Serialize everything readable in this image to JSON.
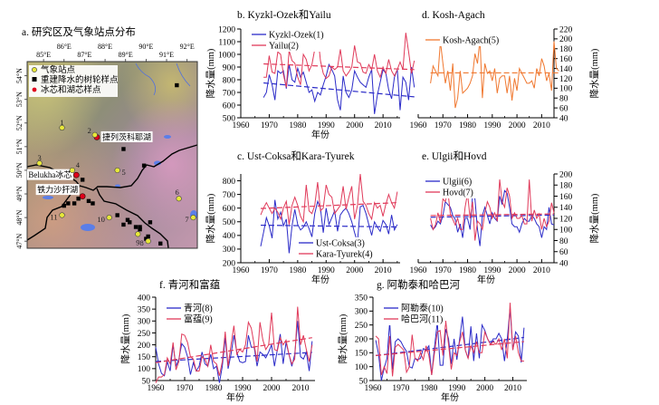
{
  "map": {
    "title": "a. 研究区及气象站点分布",
    "lon_ticks": [
      "85°E",
      "86°E",
      "87°E",
      "88°E",
      "89°E",
      "90°E",
      "91°E",
      "92°E"
    ],
    "lat_ticks": [
      "54°N",
      "53°N",
      "52°N",
      "51°N",
      "50°N",
      "49°N",
      "48°N",
      "47°N"
    ],
    "legend": [
      {
        "label": "气象站点",
        "symbol": "yellow-circle",
        "color": "#e8e83a"
      },
      {
        "label": "重建降水的树轮样点",
        "symbol": "black-square",
        "color": "#000000"
      },
      {
        "label": "冰芯和湖芯样点",
        "symbol": "red-circle",
        "color": "#e0001b"
      }
    ],
    "stations": [
      {
        "id": "1",
        "lon": 85.9,
        "lat": 51.8
      },
      {
        "id": "2",
        "lon": 87.5,
        "lat": 51.5
      },
      {
        "id": "3",
        "lon": 84.8,
        "lat": 50.3
      },
      {
        "id": "4",
        "lon": 86.4,
        "lat": 50.0
      },
      {
        "id": "5",
        "lon": 88.6,
        "lat": 50.0
      },
      {
        "id": "6",
        "lon": 91.6,
        "lat": 48.8
      },
      {
        "id": "7",
        "lon": 92.3,
        "lat": 48.0
      },
      {
        "id": "8",
        "lon": 90.1,
        "lat": 47.0
      },
      {
        "id": "9",
        "lon": 89.6,
        "lat": 47.3
      },
      {
        "id": "10",
        "lon": 88.2,
        "lat": 48.0
      },
      {
        "id": "11",
        "lon": 85.9,
        "lat": 48.1
      }
    ],
    "core_sites": [
      {
        "label": "捷列茨科耶湖",
        "lon": 87.6,
        "lat": 51.4
      },
      {
        "label": "Belukha冰芯",
        "lon": 86.6,
        "lat": 49.8
      },
      {
        "label": "铁力沙扞湖",
        "lon": 86.9,
        "lat": 48.9
      }
    ],
    "tree_ring_sites": [
      {
        "lon": 91.5,
        "lat": 53.6
      },
      {
        "lon": 88.9,
        "lat": 50.9
      },
      {
        "lon": 89.9,
        "lat": 50.2
      },
      {
        "lon": 86.9,
        "lat": 49.6
      },
      {
        "lon": 86.7,
        "lat": 48.8
      },
      {
        "lon": 86.5,
        "lat": 48.6
      },
      {
        "lon": 86.2,
        "lat": 48.6
      },
      {
        "lon": 86.0,
        "lat": 48.5
      },
      {
        "lon": 87.2,
        "lat": 48.7
      },
      {
        "lon": 87.4,
        "lat": 48.6
      },
      {
        "lon": 88.6,
        "lat": 48.1
      },
      {
        "lon": 89.1,
        "lat": 47.9
      },
      {
        "lon": 89.2,
        "lat": 47.8
      },
      {
        "lon": 88.9,
        "lat": 47.7
      },
      {
        "lon": 89.5,
        "lat": 47.6
      },
      {
        "lon": 89.7,
        "lat": 47.5
      },
      {
        "lon": 89.7,
        "lat": 47.6
      },
      {
        "lon": 90.2,
        "lat": 47.8
      },
      {
        "lon": 90.0,
        "lat": 47.1
      },
      {
        "lon": 90.1,
        "lat": 47.2
      },
      {
        "lon": 90.7,
        "lat": 46.9
      }
    ]
  },
  "chart_data": [
    {
      "id": "b",
      "type": "line",
      "title": "b. Kyzkl-Ozek和Yailu",
      "xlabel": "年份",
      "ylabel": "降水量(mm)",
      "yaxis_side": "left",
      "xlim": [
        1960,
        2016
      ],
      "ylim": [
        500,
        1200
      ],
      "xticks": [
        1960,
        1970,
        1980,
        1990,
        2000,
        2010
      ],
      "yticks": [
        500,
        600,
        700,
        800,
        900,
        1000,
        1100,
        1200
      ],
      "legend_position": "top-left",
      "series": [
        {
          "name": "Kyzkl-Ozek(1)",
          "color": "#2b2bc8",
          "x_start": 1968,
          "values": [
            660,
            700,
            840,
            760,
            640,
            870,
            850,
            870,
            730,
            920,
            800,
            780,
            890,
            820,
            860,
            780,
            700,
            720,
            630,
            700,
            680,
            760,
            830,
            920,
            880,
            830,
            640,
            560,
            830,
            700,
            660,
            720,
            870,
            820,
            780,
            760,
            740,
            820,
            880,
            530,
            680,
            780,
            880,
            850,
            720,
            650,
            820,
            880,
            560,
            820,
            780,
            640,
            900,
            740
          ],
          "trend": [
            775,
            665
          ]
        },
        {
          "name": "Yailu(2)",
          "color": "#e03a5a",
          "x_start": 1968,
          "values": [
            820,
            820,
            990,
            860,
            850,
            1020,
            1000,
            840,
            740,
            1030,
            950,
            930,
            820,
            760,
            1000,
            960,
            870,
            920,
            1040,
            1170,
            950,
            850,
            810,
            830,
            900,
            880,
            900,
            1040,
            870,
            830,
            860,
            900,
            1070,
            940,
            930,
            860,
            850,
            920,
            880,
            1000,
            870,
            820,
            900,
            850,
            960,
            870,
            830,
            880,
            940,
            880,
            1170,
            1020,
            850,
            950
          ],
          "trend": [
            925,
            880
          ]
        }
      ]
    },
    {
      "id": "c",
      "type": "line",
      "title": "c. Ust-Coksa和Kara-Tyurek",
      "xlabel": "年份",
      "ylabel": "降水量(mm)",
      "yaxis_side": "left",
      "xlim": [
        1960,
        2016
      ],
      "ylim": [
        200,
        850
      ],
      "xticks": [
        1960,
        1970,
        1980,
        1990,
        2000,
        2010
      ],
      "yticks": [
        200,
        300,
        400,
        500,
        600,
        700,
        800
      ],
      "legend_position": "bottom-center",
      "series": [
        {
          "name": "Ust-Coksa(3)",
          "color": "#2b2bc8",
          "x_start": 1967,
          "values": [
            320,
            420,
            530,
            470,
            380,
            660,
            520,
            570,
            470,
            520,
            270,
            470,
            590,
            480,
            440,
            460,
            500,
            450,
            390,
            560,
            650,
            600,
            420,
            600,
            480,
            530,
            580,
            430,
            550,
            580,
            600,
            560,
            500,
            420,
            350,
            610,
            620,
            560,
            480,
            400,
            500,
            460,
            430,
            510,
            480,
            410,
            550,
            440,
            480
          ],
          "trend": [
            475,
            462
          ]
        },
        {
          "name": "Kara-Tyurek(4)",
          "color": "#e03a5a",
          "x_start": 1967,
          "values": [
            550,
            600,
            640,
            600,
            560,
            600,
            570,
            520,
            600,
            650,
            480,
            620,
            680,
            620,
            540,
            500,
            770,
            580,
            560,
            620,
            790,
            580,
            600,
            770,
            700,
            680,
            560,
            590,
            620,
            760,
            590,
            680,
            760,
            520,
            620,
            850,
            650,
            620,
            560,
            520,
            640,
            600,
            620,
            540,
            630,
            700,
            640,
            600,
            720
          ],
          "trend": [
            597,
            640
          ]
        }
      ]
    },
    {
      "id": "d",
      "type": "line",
      "title": "d. Kosh-Agach",
      "xlabel": "",
      "ylabel": "降水量(mm)",
      "yaxis_side": "right",
      "xlim": [
        1960,
        2015
      ],
      "ylim": [
        40,
        220
      ],
      "xticks": [
        1960,
        1970,
        1980,
        1990,
        2000,
        2010
      ],
      "yticks": [
        40,
        60,
        80,
        100,
        120,
        140,
        160,
        180,
        200,
        220
      ],
      "legend_position": "top-left",
      "series": [
        {
          "name": "Kosh-Agach(5)",
          "color": "#f07830",
          "x_start": 1965,
          "values": [
            110,
            145,
            135,
            125,
            195,
            150,
            110,
            135,
            95,
            150,
            60,
            80,
            135,
            90,
            95,
            100,
            110,
            125,
            170,
            150,
            200,
            80,
            150,
            130,
            135,
            115,
            140,
            90,
            120,
            125,
            125,
            90,
            125,
            75,
            120,
            95,
            140,
            130,
            120,
            110,
            110,
            115,
            100,
            140,
            125,
            160,
            145,
            115,
            130,
            95,
            195,
            140,
            135
          ],
          "trend": [
            131,
            131
          ]
        }
      ]
    },
    {
      "id": "e",
      "type": "line",
      "title": "e. Ulgii和Hovd",
      "xlabel": "年份",
      "ylabel": "降水量(mm)",
      "yaxis_side": "right",
      "xlim": [
        1960,
        2015
      ],
      "ylim": [
        40,
        200
      ],
      "xticks": [
        1960,
        1970,
        1980,
        1990,
        2000,
        2010
      ],
      "yticks": [
        40,
        60,
        80,
        100,
        120,
        140,
        160,
        180,
        200
      ],
      "legend_position": "top-left",
      "series": [
        {
          "name": "Ulgii(6)",
          "color": "#2b2bc8",
          "x_start": 1965,
          "values": [
            108,
            100,
            105,
            115,
            110,
            125,
            150,
            145,
            140,
            125,
            118,
            95,
            110,
            85,
            120,
            120,
            100,
            160,
            155,
            100,
            70,
            125,
            140,
            125,
            110,
            130,
            120,
            115,
            160,
            145,
            170,
            165,
            140,
            110,
            105,
            105,
            95,
            110,
            120,
            115,
            115,
            125,
            120,
            110,
            105,
            85,
            105,
            100,
            140,
            110,
            108
          ],
          "trend": [
            122,
            126
          ]
        },
        {
          "name": "Hovd(7)",
          "color": "#e03a5a",
          "x_start": 1965,
          "values": [
            120,
            100,
            108,
            130,
            112,
            155,
            150,
            170,
            128,
            118,
            108,
            120,
            100,
            100,
            140,
            165,
            120,
            150,
            80,
            115,
            110,
            100,
            130,
            150,
            140,
            120,
            130,
            115,
            190,
            150,
            140,
            175,
            160,
            120,
            130,
            120,
            120,
            125,
            110,
            110,
            190,
            115,
            135,
            120,
            128,
            100,
            120,
            105,
            115,
            148,
            130
          ],
          "trend": [
            125,
            128
          ]
        }
      ]
    },
    {
      "id": "f",
      "type": "line",
      "title": "f. 青河和富蕴",
      "xlabel": "年份",
      "ylabel": "降水量(mm)",
      "yaxis_side": "left",
      "xlim": [
        1960,
        2015
      ],
      "ylim": [
        50,
        400
      ],
      "xticks": [
        1960,
        1970,
        1980,
        1990,
        2000,
        2010
      ],
      "yticks": [
        50,
        100,
        150,
        200,
        250,
        300,
        350,
        400
      ],
      "legend_position": "top-left",
      "series": [
        {
          "name": "青河(8)",
          "color": "#2b2bc8",
          "x_start": 1960,
          "values": [
            190,
            120,
            80,
            70,
            130,
            90,
            200,
            110,
            140,
            205,
            190,
            150,
            75,
            125,
            90,
            110,
            170,
            120,
            110,
            160,
            100,
            110,
            40,
            110,
            230,
            100,
            160,
            240,
            170,
            130,
            125,
            130,
            240,
            190,
            190,
            110,
            170,
            160,
            145,
            170,
            200,
            110,
            180,
            245,
            120,
            210,
            160,
            110,
            160,
            300,
            150,
            140,
            170,
            90,
            215
          ],
          "trend": [
            130,
            168
          ]
        },
        {
          "name": "富蕴(9)",
          "color": "#e03a5a",
          "x_start": 1960,
          "values": [
            40,
            65,
            65,
            75,
            145,
            120,
            210,
            95,
            130,
            245,
            240,
            210,
            150,
            140,
            90,
            90,
            150,
            140,
            110,
            200,
            130,
            120,
            70,
            130,
            255,
            110,
            200,
            280,
            160,
            180,
            170,
            200,
            295,
            270,
            200,
            130,
            295,
            220,
            180,
            200,
            335,
            180,
            175,
            230,
            200,
            220,
            160,
            120,
            140,
            360,
            200,
            240,
            180,
            130,
            200
          ],
          "trend": [
            125,
            230
          ]
        }
      ]
    },
    {
      "id": "g",
      "type": "line",
      "title": "g. 阿勒泰和哈巴河",
      "xlabel": "年份",
      "ylabel": "降水量(mm)",
      "yaxis_side": "left",
      "xlim": [
        1960,
        2015
      ],
      "ylim": [
        50,
        350
      ],
      "xticks": [
        1960,
        1970,
        1980,
        1990,
        2000,
        2010
      ],
      "yticks": [
        50,
        100,
        150,
        200,
        250,
        300,
        350
      ],
      "legend_position": "top-left",
      "series": [
        {
          "name": "阿勒泰(10)",
          "color": "#2b2bc8",
          "x_start": 1961,
          "values": [
            195,
            145,
            50,
            95,
            130,
            260,
            90,
            190,
            200,
            190,
            170,
            155,
            100,
            95,
            130,
            125,
            130,
            165,
            160,
            175,
            70,
            170,
            260,
            105,
            105,
            235,
            200,
            110,
            200,
            125,
            200,
            280,
            160,
            130,
            245,
            120,
            220,
            130,
            250,
            230,
            200,
            180,
            200,
            200,
            220,
            200,
            120,
            200,
            310,
            160,
            225,
            210,
            115,
            240
          ],
          "trend": [
            140,
            205
          ]
        },
        {
          "name": "哈巴河(11)",
          "color": "#e03a5a",
          "x_start": 1961,
          "values": [
            210,
            200,
            70,
            100,
            75,
            210,
            65,
            170,
            180,
            170,
            160,
            80,
            100,
            215,
            130,
            120,
            150,
            125,
            175,
            140,
            70,
            150,
            225,
            230,
            140,
            265,
            180,
            90,
            150,
            140,
            190,
            225,
            160,
            130,
            175,
            150,
            190,
            150,
            150,
            225,
            200,
            180,
            190,
            180,
            200,
            160,
            200,
            130,
            330,
            160,
            210,
            150,
            120,
            120
          ],
          "trend": [
            140,
            190
          ]
        }
      ]
    }
  ]
}
